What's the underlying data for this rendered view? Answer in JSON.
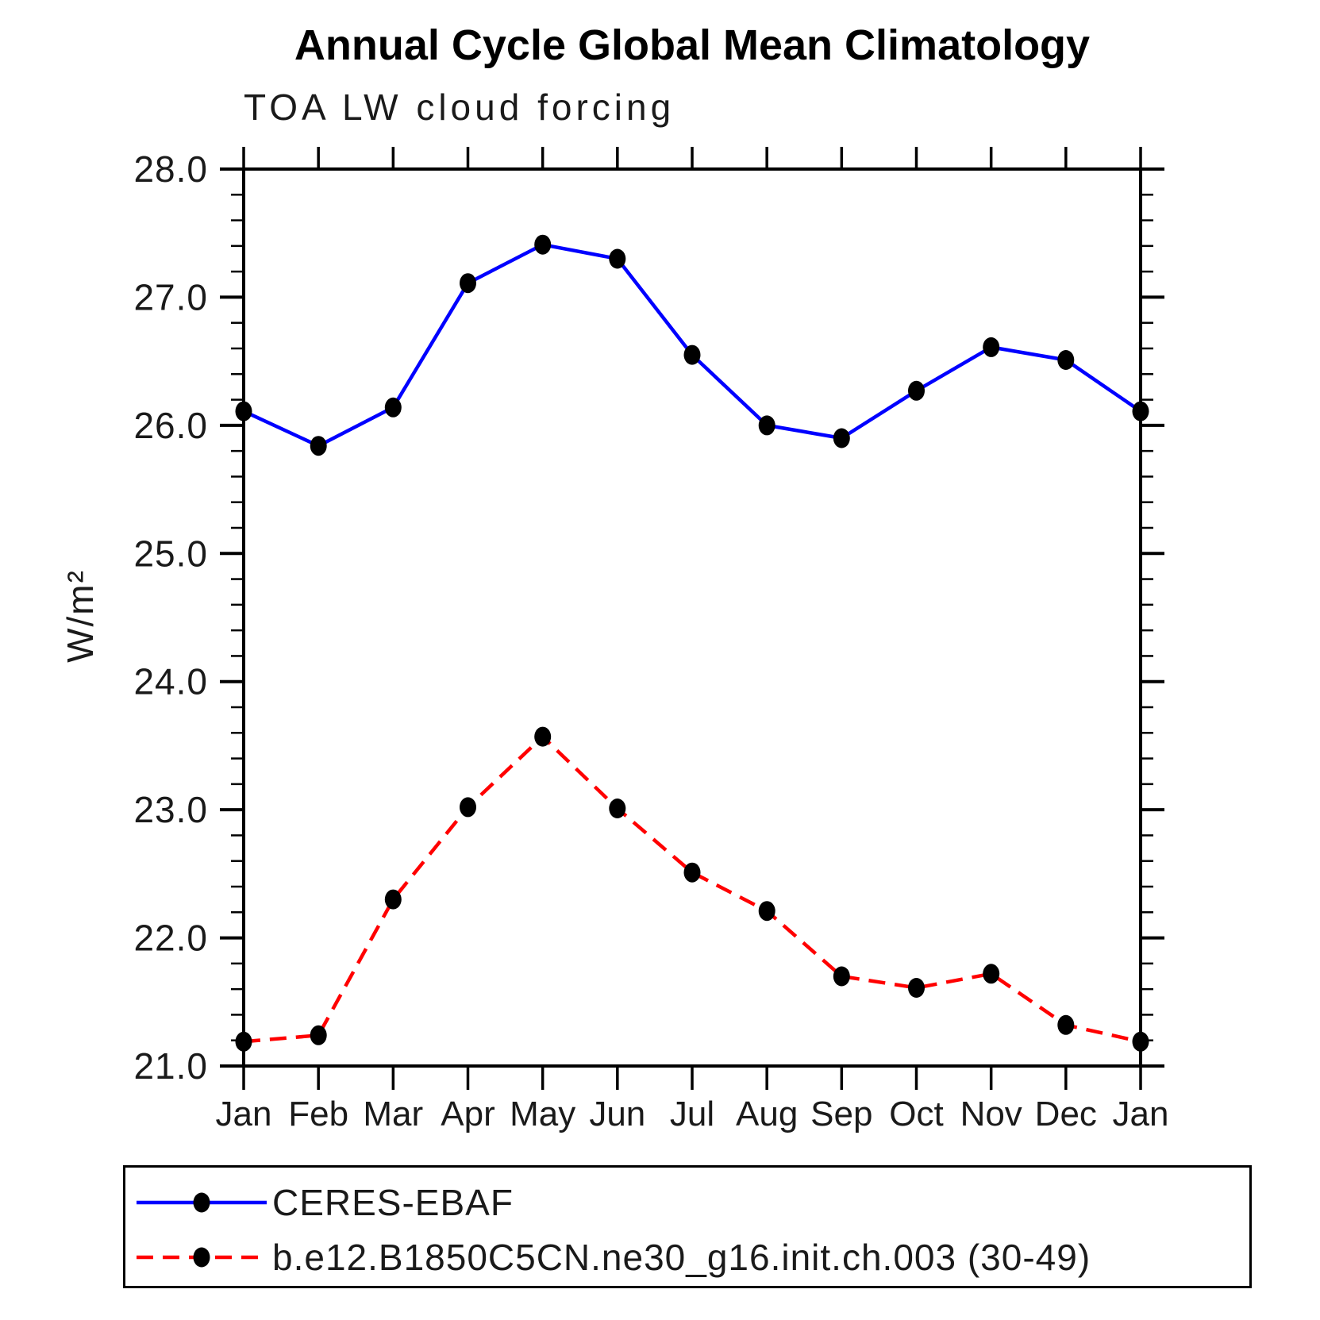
{
  "title": "Annual Cycle Global Mean Climatology",
  "subtitle": "TOA LW cloud forcing",
  "y_axis_label": "W/m²",
  "colors": {
    "obs_line": "#0000ff",
    "model_line": "#ff0000",
    "marker": "#000000",
    "axis": "#000000"
  },
  "legend": {
    "entries": [
      {
        "label": "CERES-EBAF",
        "color": "#0000ff",
        "line_style": "solid",
        "marker": "filled-circle"
      },
      {
        "label": "b.e12.B1850C5CN.ne30_g16.init.ch.003 (30-49)",
        "color": "#ff0000",
        "line_style": "dashed",
        "marker": "filled-circle"
      }
    ]
  },
  "chart_data": {
    "type": "line",
    "title": "Annual Cycle Global Mean Climatology",
    "subtitle": "TOA LW cloud forcing",
    "xlabel": "",
    "ylabel": "W/m²",
    "categories": [
      "Jan",
      "Feb",
      "Mar",
      "Apr",
      "May",
      "Jun",
      "Jul",
      "Aug",
      "Sep",
      "Oct",
      "Nov",
      "Dec",
      "Jan"
    ],
    "series": [
      {
        "name": "CERES-EBAF",
        "color": "#0000ff",
        "line_style": "solid",
        "marker": "filled-circle",
        "marker_color": "#000000",
        "values": [
          26.11,
          25.84,
          26.14,
          27.11,
          27.41,
          27.3,
          26.55,
          26.0,
          25.9,
          26.27,
          26.61,
          26.51,
          26.11
        ]
      },
      {
        "name": "b.e12.B1850C5CN.ne30_g16.init.ch.003 (30-49)",
        "color": "#ff0000",
        "line_style": "dashed",
        "marker": "filled-circle",
        "marker_color": "#000000",
        "values": [
          21.19,
          21.24,
          22.3,
          23.02,
          23.57,
          23.01,
          22.51,
          22.21,
          21.7,
          21.61,
          21.72,
          21.32,
          21.19
        ]
      }
    ],
    "ylim": [
      21.0,
      28.0
    ],
    "ytick_step": 1.0,
    "ytick_minor_step": 0.2,
    "ytick_labels": [
      "21.0",
      "22.0",
      "23.0",
      "24.0",
      "25.0",
      "26.0",
      "27.0",
      "28.0"
    ],
    "grid": false,
    "legend_position": "bottom-left-box"
  }
}
